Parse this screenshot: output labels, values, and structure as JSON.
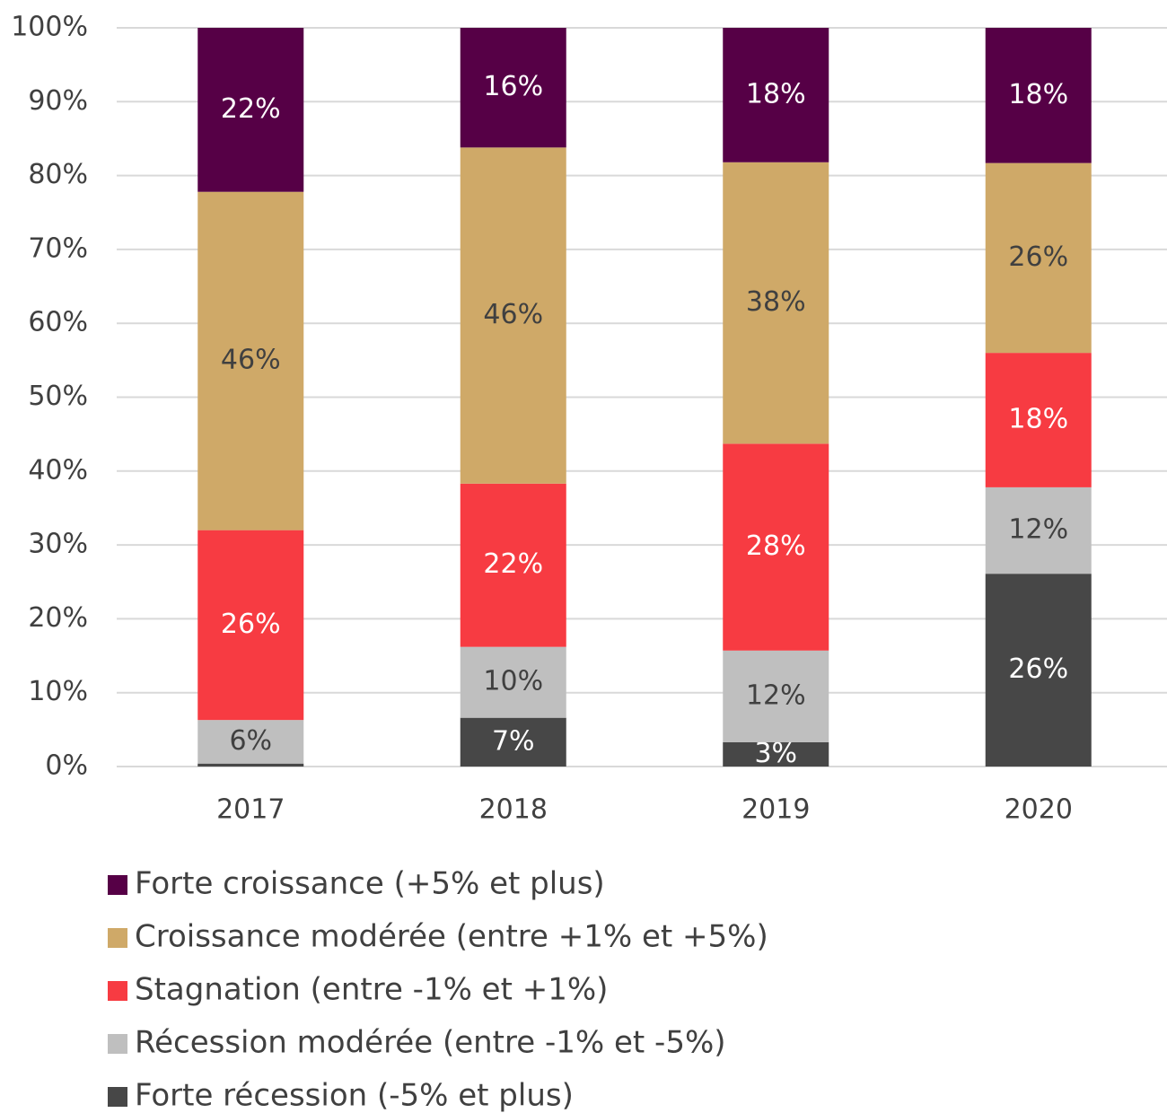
{
  "chart_data": {
    "type": "stacked_bar",
    "categories": [
      "2017",
      "2018",
      "2019",
      "2020"
    ],
    "series": [
      {
        "name": "Forte croissance (+5% et plus)",
        "color": "#560046",
        "values": [
          22.2,
          16.2,
          18.2,
          18.3
        ],
        "value_labels": [
          "22%",
          "16%",
          "18%",
          "18%"
        ]
      },
      {
        "name": "Croissance modérée (entre +1% et +5%)",
        "color": "#cfa968",
        "values": [
          45.8,
          45.5,
          38.1,
          25.7
        ],
        "value_labels": [
          "46%",
          "46%",
          "38%",
          "26%"
        ]
      },
      {
        "name": "Stagnation (entre -1% et +1%)",
        "color": "#f73b42",
        "values": [
          25.7,
          22.1,
          28.0,
          18.2
        ],
        "value_labels": [
          "26%",
          "22%",
          "28%",
          "18%"
        ]
      },
      {
        "name": "Récession modérée (entre -1% et -5%)",
        "color": "#bfbfbf",
        "values": [
          5.9,
          9.6,
          12.4,
          11.7
        ],
        "value_labels": [
          "6%",
          "10%",
          "12%",
          "12%"
        ]
      },
      {
        "name": "Forte récession (-5% et plus)",
        "color": "#474747",
        "values": [
          0.4,
          6.6,
          3.3,
          26.1
        ],
        "value_labels": [
          null,
          "7%",
          "3%",
          "26%"
        ]
      }
    ],
    "ylim": [
      0,
      100
    ],
    "yticks": [
      {
        "value": 0,
        "label": "0%"
      },
      {
        "value": 10,
        "label": "10%"
      },
      {
        "value": 20,
        "label": "20%"
      },
      {
        "value": 30,
        "label": "30%"
      },
      {
        "value": 40,
        "label": "40%"
      },
      {
        "value": 50,
        "label": "50%"
      },
      {
        "value": 60,
        "label": "60%"
      },
      {
        "value": 70,
        "label": "70%"
      },
      {
        "value": 80,
        "label": "80%"
      },
      {
        "value": 90,
        "label": "90%"
      },
      {
        "value": 100,
        "label": "100%"
      }
    ],
    "grid": true
  }
}
